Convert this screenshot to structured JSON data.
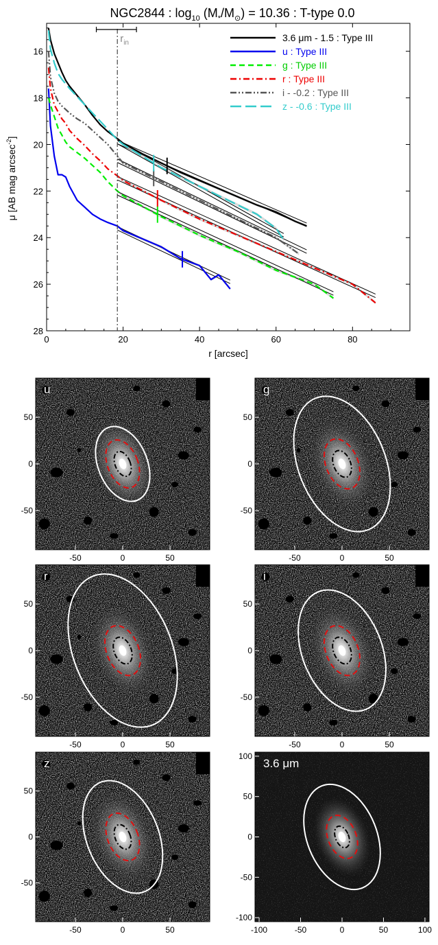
{
  "figure": {
    "title": "NGC2844 : log10 (M*/M⊙) = 10.36 : T-type 0.0",
    "title_parts": {
      "name": "NGC2844 : log",
      "sub": "10",
      "mid": " (M",
      "star": "*",
      "slash": "/M",
      "sun": "⊙",
      "rest": ") = 10.36 : T-type 0.0"
    }
  },
  "chart_data": [
    {
      "type": "line",
      "title": "NGC2844 : log10 (M*/M⊙) = 10.36 : T-type 0.0",
      "xlabel": "r [arcsec]",
      "ylabel": "μ [AB mag arcsec-2]",
      "xlim": [
        0,
        95
      ],
      "ylim": [
        28,
        14.8
      ],
      "y_inverted": true,
      "xticks": [
        0,
        20,
        40,
        60,
        80
      ],
      "yticks": [
        16,
        18,
        20,
        22,
        24,
        26,
        28
      ],
      "r_in": {
        "label": "r",
        "label_sub": "in",
        "value": 18.5,
        "err_low": 13,
        "err_high": 23.5
      },
      "legend_position": "top-right",
      "series": [
        {
          "name": "3.6 μm - 1.5 : Type III",
          "legend": {
            "pre": "3.6 ",
            "mu": "μ",
            "post": "m - 1.5 : Type III"
          },
          "color": "#000000",
          "dash": "solid",
          "break_r": 31.5,
          "x": [
            0.5,
            1,
            2,
            3,
            4,
            5,
            6,
            8,
            10,
            12,
            14,
            16,
            18.5,
            20,
            25,
            30,
            35,
            40,
            45,
            50,
            55,
            60,
            65,
            68
          ],
          "y": [
            15.0,
            15.5,
            16.1,
            16.5,
            16.9,
            17.25,
            17.5,
            17.9,
            18.3,
            18.75,
            19.15,
            19.45,
            19.75,
            19.95,
            20.4,
            20.8,
            21.2,
            21.55,
            21.9,
            22.25,
            22.6,
            22.9,
            23.3,
            23.5
          ],
          "fit_x": [
            18.5,
            68
          ],
          "fit_y": [
            19.9,
            23.45
          ]
        },
        {
          "name": "u : Type III",
          "color": "#0000ee",
          "dash": "solid",
          "break_r": 35.5,
          "x": [
            0.5,
            1,
            2,
            3,
            4,
            5,
            6,
            8,
            10,
            12,
            14,
            16,
            18.5,
            20,
            25,
            30,
            35,
            40,
            43,
            45,
            48
          ],
          "y": [
            17.6,
            19.2,
            20.5,
            21.3,
            21.3,
            21.4,
            21.8,
            22.4,
            22.7,
            23.0,
            23.2,
            23.35,
            23.5,
            23.7,
            24.05,
            24.4,
            24.9,
            25.2,
            25.8,
            25.6,
            26.2
          ],
          "fit_x": [
            18.5,
            48
          ],
          "fit_y": [
            23.6,
            25.9
          ]
        },
        {
          "name": "g : Type III",
          "color": "#00ee00",
          "dash": "dash",
          "break_r": 29,
          "x": [
            0.5,
            1,
            2,
            3,
            4,
            5,
            6,
            8,
            10,
            12,
            14,
            16,
            18.5,
            20,
            30,
            40,
            50,
            60,
            70,
            75
          ],
          "y": [
            18.0,
            18.3,
            18.8,
            19.3,
            19.6,
            19.9,
            20.1,
            20.35,
            20.6,
            20.9,
            21.2,
            21.6,
            22.0,
            22.2,
            23.1,
            23.9,
            24.6,
            25.4,
            26.0,
            26.6
          ],
          "fit_x": [
            18.5,
            75
          ],
          "fit_y": [
            22.1,
            26.4
          ]
        },
        {
          "name": "r : Type III",
          "color": "#ee0000",
          "dash": "dashdot",
          "break_r": 29,
          "x": [
            0.5,
            1,
            2,
            3,
            4,
            5,
            6,
            8,
            10,
            12,
            14,
            16,
            18.5,
            20,
            30,
            40,
            50,
            60,
            70,
            80,
            86
          ],
          "y": [
            16.7,
            17.6,
            18.3,
            18.6,
            18.9,
            19.1,
            19.4,
            19.75,
            20.05,
            20.4,
            20.7,
            21.05,
            21.35,
            21.55,
            22.4,
            23.2,
            23.9,
            24.6,
            25.3,
            26.0,
            26.8
          ],
          "fit_x": [
            18.5,
            86
          ],
          "fit_y": [
            21.45,
            26.5
          ]
        },
        {
          "name": "i - -0.2 : Type III",
          "color": "#555555",
          "dash": "dashdotdot",
          "break_r": 28,
          "x": [
            0.5,
            1,
            2,
            3,
            4,
            5,
            6,
            8,
            10,
            12,
            14,
            16,
            18.5,
            20,
            30,
            40,
            50,
            60,
            66
          ],
          "y": [
            16.0,
            17.1,
            17.8,
            18.15,
            18.35,
            18.5,
            18.65,
            18.9,
            19.1,
            19.4,
            19.7,
            20.0,
            20.5,
            20.8,
            21.6,
            22.4,
            23.2,
            24.0,
            24.7
          ],
          "fit_x": [
            18.5,
            68
          ],
          "fit_y": [
            20.7,
            24.6
          ]
        },
        {
          "name": "z - -0.6 : Type III",
          "color": "#33cccc",
          "dash": "longdash",
          "break_r": 28,
          "x": [
            0.5,
            1,
            2,
            3,
            4,
            5,
            6,
            8,
            10,
            12,
            14,
            16,
            18.5,
            20,
            25,
            30,
            35,
            40,
            45,
            50,
            55,
            60,
            62
          ],
          "y": [
            15.1,
            15.9,
            16.5,
            16.95,
            17.2,
            17.4,
            17.6,
            17.95,
            18.3,
            18.65,
            19.0,
            19.35,
            19.8,
            20.0,
            20.5,
            21.0,
            21.4,
            21.8,
            22.2,
            22.6,
            23.0,
            23.6,
            24.1
          ],
          "fit_x": [
            18.5,
            62
          ],
          "fit_y": [
            19.9,
            23.9
          ]
        }
      ]
    }
  ],
  "panels": [
    {
      "label": "u",
      "xticks": [
        -50,
        0,
        50
      ],
      "yticks": [
        50,
        0,
        -50
      ],
      "outer": {
        "a": 42,
        "b": 26
      },
      "red": {
        "a": 27,
        "b": 16
      },
      "black": {
        "a": 14,
        "b": 8
      }
    },
    {
      "label": "g",
      "xticks": [
        -50,
        0,
        50
      ],
      "yticks": [
        50,
        0,
        -50
      ],
      "outer": {
        "a": 76,
        "b": 46
      },
      "red": {
        "a": 28,
        "b": 17
      },
      "black": {
        "a": 15,
        "b": 9
      }
    },
    {
      "label": "r",
      "xticks": [
        -50,
        0,
        50
      ],
      "yticks": [
        50,
        0,
        -50
      ],
      "outer": {
        "a": 86,
        "b": 52
      },
      "red": {
        "a": 28,
        "b": 17
      },
      "black": {
        "a": 15,
        "b": 9
      }
    },
    {
      "label": "i",
      "xticks": [
        -50,
        0,
        50
      ],
      "yticks": [
        50,
        0,
        -50
      ],
      "outer": {
        "a": 68,
        "b": 42
      },
      "red": {
        "a": 28,
        "b": 17
      },
      "black": {
        "a": 15,
        "b": 9
      }
    },
    {
      "label": "z",
      "xticks": [
        -50,
        0,
        50
      ],
      "yticks": [
        50,
        0,
        -50
      ],
      "outer": {
        "a": 64,
        "b": 38
      },
      "red": {
        "a": 27,
        "b": 16
      },
      "black": {
        "a": 14,
        "b": 8
      }
    },
    {
      "label": "3.6 μm",
      "label_parts": {
        "pre": "3.6 ",
        "mu": "μ",
        "post": "m"
      },
      "xticks": [
        -100,
        -50,
        0,
        50,
        100
      ],
      "yticks": [
        100,
        50,
        0,
        -50,
        -100
      ],
      "outer": {
        "a": 68,
        "b": 42
      },
      "red": {
        "a": 28,
        "b": 17
      },
      "black": {
        "a": 14,
        "b": 8
      }
    }
  ],
  "colors": {
    "ellipse_outer": "#ffffff",
    "ellipse_red": "#e01010",
    "ellipse_black": "#000000",
    "background": "#ffffff"
  }
}
